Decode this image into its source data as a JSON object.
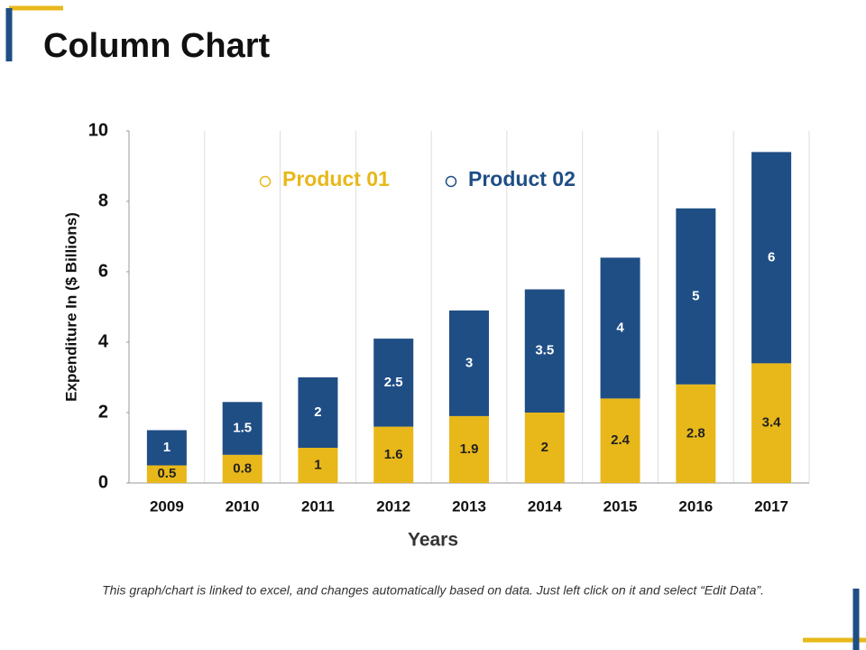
{
  "chart_data": {
    "type": "stacked_bar",
    "title": "Column Chart",
    "x_label": "Years",
    "y_label": "Expenditure In ($ Billions)",
    "categories": [
      "2009",
      "2010",
      "2011",
      "2012",
      "2013",
      "2014",
      "2015",
      "2016",
      "2017"
    ],
    "series": [
      {
        "name": "Product 01",
        "color": "#e8b81a",
        "values": [
          0.5,
          0.8,
          1,
          1.6,
          1.9,
          2,
          2.4,
          2.8,
          3.4
        ]
      },
      {
        "name": "Product 02",
        "color": "#1f4e85",
        "values": [
          1,
          1.5,
          2,
          2.5,
          3,
          3.5,
          4,
          5,
          6
        ]
      }
    ],
    "ylim": [
      0,
      10
    ],
    "yticks": [
      0,
      2,
      4,
      6,
      8,
      10
    ],
    "legend": "top"
  },
  "footnote": "This graph/chart is linked to excel, and changes automatically based on data. Just left click on it and select “Edit Data”."
}
